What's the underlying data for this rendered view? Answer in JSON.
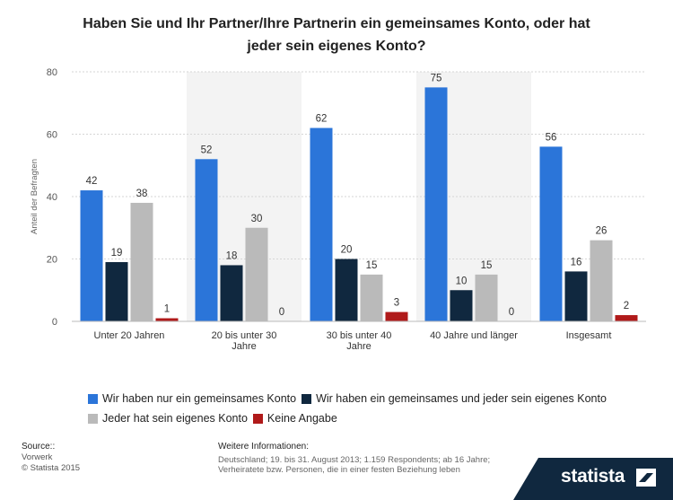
{
  "title": {
    "line1": "Haben Sie und Ihr Partner/Ihre Partnerin ein gemeinsames Konto, oder hat",
    "line2": "jeder sein eigenes Konto?"
  },
  "chart_data": {
    "type": "bar",
    "ylabel": "Anteil der Befragten",
    "ylim": [
      0,
      80
    ],
    "yticks": [
      0,
      20,
      40,
      60,
      80
    ],
    "grid": true,
    "legend_position": "bottom",
    "categories": [
      [
        "Unter 20 Jahren"
      ],
      [
        "20 bis unter 30",
        "Jahre"
      ],
      [
        "30 bis unter 40",
        "Jahre"
      ],
      [
        "40 Jahre und länger"
      ],
      [
        "Insgesamt"
      ]
    ],
    "series": [
      {
        "name": "Wir haben nur ein gemeinsames Konto",
        "color": "#2b75d9",
        "values": [
          42,
          52,
          62,
          75,
          56
        ]
      },
      {
        "name": "Wir haben ein gemeinsames und jeder sein eigenes Konto",
        "color": "#10283f",
        "values": [
          19,
          18,
          20,
          10,
          16
        ]
      },
      {
        "name": "Jeder hat sein eigenes Konto",
        "color": "#bababa",
        "values": [
          38,
          30,
          15,
          15,
          26
        ]
      },
      {
        "name": "Keine Angabe",
        "color": "#b01a1a",
        "values": [
          1,
          0,
          3,
          0,
          2
        ]
      }
    ]
  },
  "footer": {
    "source_label": "Source::",
    "source_name": "Vorwerk",
    "copyright": "© Statista 2015",
    "info_label": "Weitere Informationen:",
    "info_line1": "Deutschland; 19. bis 31. August 2013; 1.159 Respondents; ab 16 Jahre;",
    "info_line2": "Verheiratete bzw. Personen, die in einer festen Beziehung leben"
  },
  "brand": {
    "name": "statista"
  }
}
